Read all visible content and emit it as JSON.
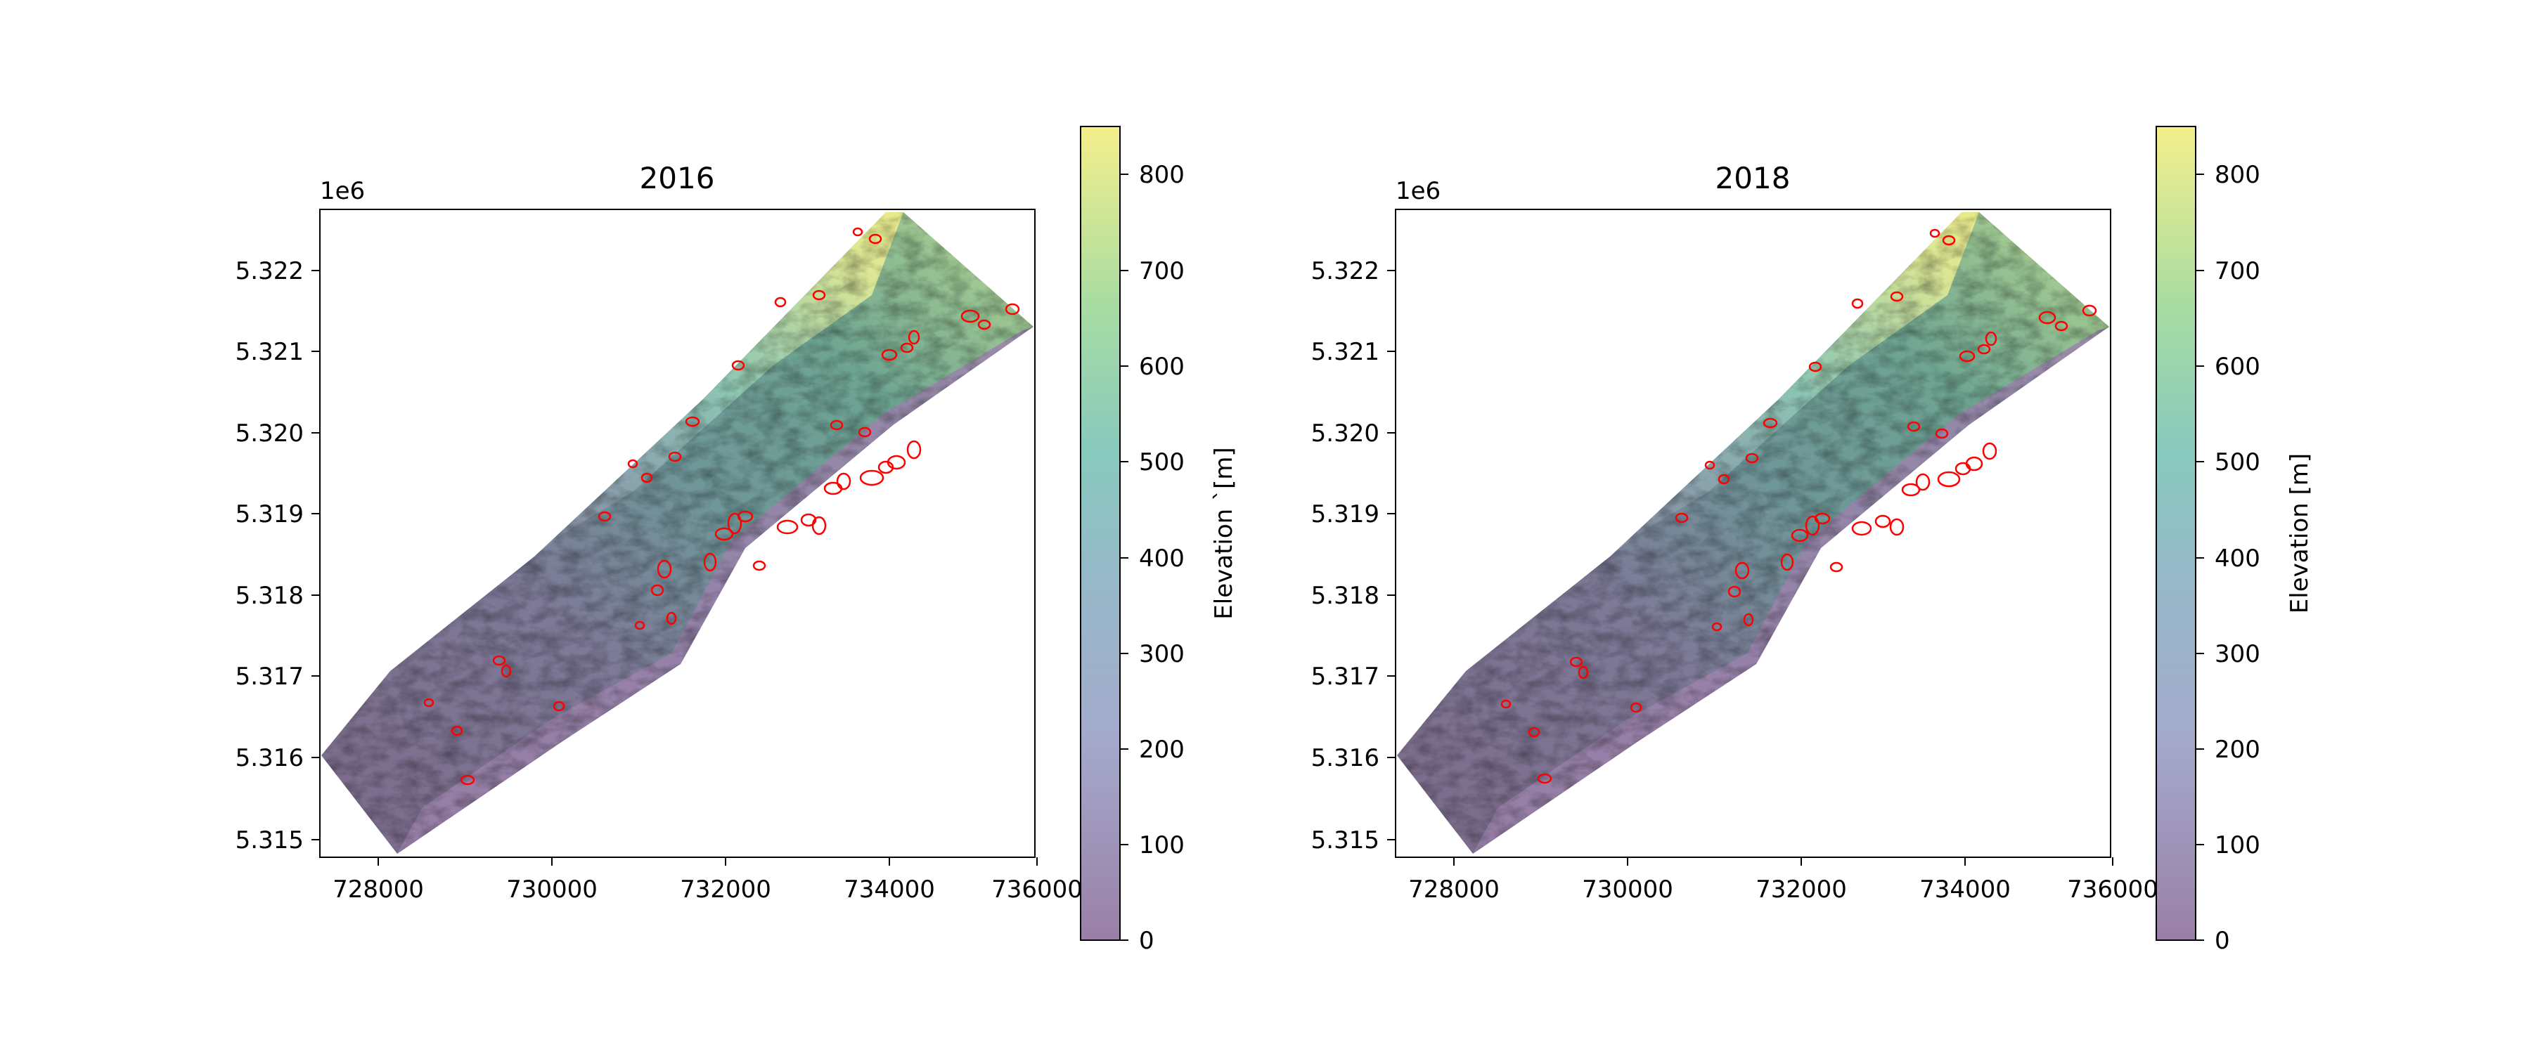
{
  "panels": [
    {
      "title": "2016",
      "offset_label": "1e6",
      "xticks": [
        "728000",
        "730000",
        "732000",
        "734000",
        "736000"
      ],
      "yticks": [
        "5.315",
        "5.316",
        "5.317",
        "5.318",
        "5.319",
        "5.320",
        "5.321",
        "5.322"
      ],
      "colorbar": {
        "label": "Elevation `[m]",
        "ticks": [
          "0",
          "100",
          "200",
          "300",
          "400",
          "500",
          "600",
          "700",
          "800"
        ]
      }
    },
    {
      "title": "2018",
      "offset_label": "1e6",
      "xticks": [
        "728000",
        "730000",
        "732000",
        "734000",
        "736000"
      ],
      "yticks": [
        "5.315",
        "5.316",
        "5.317",
        "5.318",
        "5.319",
        "5.320",
        "5.321",
        "5.322"
      ],
      "colorbar": {
        "label": "Elevation [m]",
        "ticks": [
          "0",
          "100",
          "200",
          "300",
          "400",
          "500",
          "600",
          "700",
          "800"
        ]
      }
    }
  ],
  "colors": {
    "terrain_low": "#9a7fa8",
    "terrain_mid": "#88c9bd",
    "terrain_high": "#f2ef8a",
    "landslide_outline": "#ff0000"
  },
  "colormap": "viridis (alpha 0.55)"
}
